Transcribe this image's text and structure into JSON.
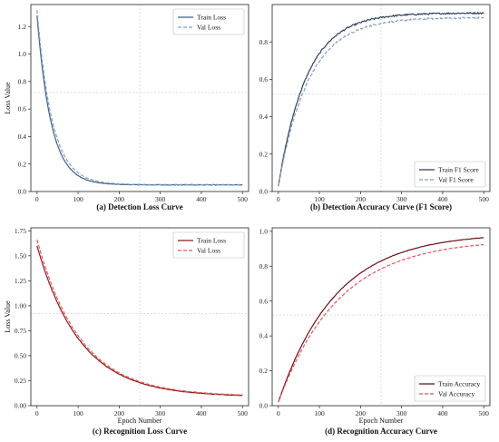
{
  "chart_data": [
    {
      "type": "line",
      "caption": "(a) Detection Loss Curve",
      "xlabel": "",
      "ylabel": "Loss Value",
      "xlim": [
        -15,
        515
      ],
      "ylim": [
        0,
        1.36
      ],
      "xticks": [
        0,
        100,
        200,
        300,
        400,
        500
      ],
      "yticks": [
        0.0,
        0.2,
        0.4,
        0.6,
        0.8,
        1.0,
        1.2
      ],
      "tick_decimals": 1,
      "curve": {
        "kind": "decay",
        "start": 1.32,
        "end": 0.05,
        "rate": 0.028
      },
      "guide": {
        "x": 250,
        "y": 0.72
      },
      "legend_position": "top-right",
      "series": [
        {
          "name": "Train Loss",
          "color": "#3f5f87",
          "dash": "solid",
          "start": 1.28,
          "end": 0.048,
          "rate": 0.029,
          "noise": 0.002
        },
        {
          "name": "Val Loss",
          "color": "#7da0c4",
          "dash": "dashed",
          "start": 1.32,
          "end": 0.05,
          "rate": 0.027,
          "noise": 0.002
        }
      ]
    },
    {
      "type": "line",
      "caption": "(b) Detection Accuracy Curve (F1 Score)",
      "xlabel": "",
      "ylabel": "",
      "xlim": [
        -15,
        515
      ],
      "ylim": [
        0,
        1.0
      ],
      "xticks": [
        0,
        100,
        200,
        300,
        400,
        500
      ],
      "yticks": [
        0.0,
        0.2,
        0.4,
        0.6,
        0.8
      ],
      "tick_decimals": 1,
      "guide": {
        "x": 250,
        "y": 0.52
      },
      "legend_position": "bottom-right",
      "series": [
        {
          "name": "Train F1 Score",
          "color": "#2e3f5c",
          "dash": "solid",
          "start": 0.03,
          "end": 0.955,
          "rate": 0.0145,
          "noise": 0.004
        },
        {
          "name": "Val F1 Score",
          "color": "#7da0c4",
          "dash": "dashed",
          "start": 0.03,
          "end": 0.93,
          "rate": 0.0135,
          "noise": 0.004
        }
      ]
    },
    {
      "type": "line",
      "caption": "(c) Recognition Loss Curve",
      "xlabel": "Epoch Number",
      "ylabel": "Loss Value",
      "xlim": [
        -15,
        515
      ],
      "ylim": [
        0,
        1.78
      ],
      "xticks": [
        0,
        100,
        200,
        300,
        400,
        500
      ],
      "yticks": [
        0.0,
        0.25,
        0.5,
        0.75,
        1.0,
        1.25,
        1.5,
        1.75
      ],
      "tick_decimals": 2,
      "guide": {
        "x": 250,
        "y": 0.92
      },
      "legend_position": "top-right",
      "series": [
        {
          "name": "Train Loss",
          "color": "#8b1a1a",
          "dash": "solid",
          "start": 1.6,
          "end": 0.09,
          "rate": 0.0095,
          "noise": 0.002
        },
        {
          "name": "Val Loss",
          "color": "#e8555a",
          "dash": "dashed",
          "start": 1.66,
          "end": 0.095,
          "rate": 0.0095,
          "noise": 0.002
        }
      ]
    },
    {
      "type": "line",
      "caption": "(d) Recognition Accuracy Curve",
      "xlabel": "Epoch Number",
      "ylabel": "",
      "xlim": [
        -15,
        515
      ],
      "ylim": [
        0,
        1.02
      ],
      "xticks": [
        0,
        100,
        200,
        300,
        400,
        500
      ],
      "yticks": [
        0.0,
        0.2,
        0.4,
        0.6,
        0.8,
        1.0
      ],
      "tick_decimals": 1,
      "guide": {
        "x": 250,
        "y": 0.52
      },
      "legend_position": "bottom-right",
      "series": [
        {
          "name": "Train Accuracy",
          "color": "#6b1018",
          "dash": "solid",
          "start": 0.02,
          "end": 0.99,
          "rate": 0.0072,
          "noise": 0.001
        },
        {
          "name": "Val Accuracy",
          "color": "#e8555a",
          "dash": "dashed",
          "start": 0.02,
          "end": 0.955,
          "rate": 0.0068,
          "noise": 0.001
        }
      ]
    }
  ]
}
